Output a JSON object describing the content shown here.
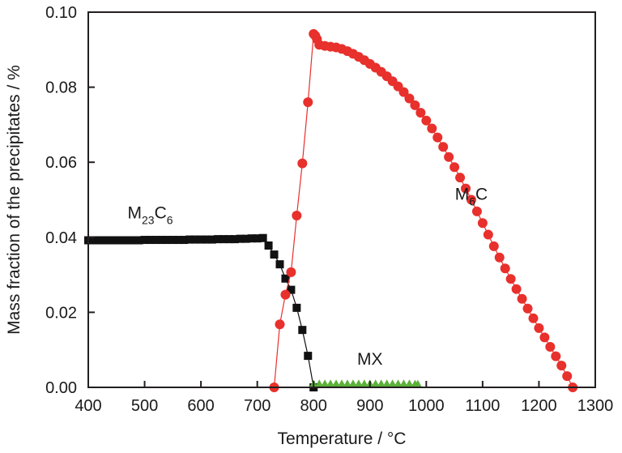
{
  "chart_data": {
    "type": "line",
    "title": "",
    "xlabel": "Temperature / °C",
    "ylabel": "Mass fraction of the precipitates / %",
    "xlim": [
      400,
      1300
    ],
    "ylim": [
      0,
      0.1
    ],
    "xticks": [
      400,
      500,
      600,
      700,
      800,
      900,
      1000,
      1100,
      1200,
      1300
    ],
    "xtick_labels": [
      "400",
      "500",
      "600",
      "700",
      "800",
      "900",
      "1000",
      "1100",
      "1200",
      "1300"
    ],
    "yticks": [
      0,
      0.02,
      0.04,
      0.06,
      0.08,
      0.1
    ],
    "ytick_labels": [
      "0.00",
      "0.02",
      "0.04",
      "0.06",
      "0.08",
      "0.10"
    ],
    "grid": false,
    "legend": "none",
    "annotations": [
      {
        "main": "M",
        "sub": "23",
        "main2": "C",
        "sub2": "6",
        "x": 510,
        "y": 0.045,
        "series": "M23C6"
      },
      {
        "main": "M",
        "sub": "6",
        "main2": "C",
        "sub2": "",
        "x": 1080,
        "y": 0.05,
        "series": "M6C"
      },
      {
        "main": "MX",
        "sub": "",
        "main2": "",
        "sub2": "",
        "x": 900,
        "y": 0.006,
        "series": "MX"
      }
    ],
    "series": [
      {
        "name": "M23C6",
        "marker": "square",
        "color": "#111111",
        "line_color": "#111111",
        "x": [
          400,
          410,
          420,
          430,
          440,
          450,
          460,
          470,
          480,
          490,
          500,
          510,
          520,
          530,
          540,
          550,
          560,
          570,
          580,
          590,
          600,
          610,
          620,
          630,
          640,
          650,
          660,
          670,
          680,
          690,
          700,
          710,
          720,
          730,
          740,
          750,
          760,
          770,
          780,
          790,
          800
        ],
        "y": [
          0.0392,
          0.0392,
          0.0392,
          0.0392,
          0.0392,
          0.0392,
          0.0392,
          0.0392,
          0.0392,
          0.0392,
          0.0393,
          0.0393,
          0.0393,
          0.0393,
          0.0393,
          0.0393,
          0.0393,
          0.0393,
          0.0394,
          0.0394,
          0.0394,
          0.0394,
          0.0394,
          0.0395,
          0.0395,
          0.0395,
          0.0395,
          0.0396,
          0.0396,
          0.0397,
          0.0397,
          0.0398,
          0.0378,
          0.0354,
          0.0328,
          0.029,
          0.026,
          0.0212,
          0.0153,
          0.0084,
          0.0
        ]
      },
      {
        "name": "M6C",
        "marker": "circle",
        "color": "#e8302c",
        "line_color": "#e8302c",
        "x": [
          730,
          740,
          750,
          760,
          770,
          780,
          790,
          800,
          803,
          806,
          810,
          820,
          830,
          840,
          850,
          860,
          870,
          880,
          890,
          900,
          910,
          920,
          930,
          940,
          950,
          960,
          970,
          980,
          990,
          1000,
          1010,
          1020,
          1030,
          1040,
          1050,
          1060,
          1070,
          1080,
          1090,
          1100,
          1110,
          1120,
          1130,
          1140,
          1150,
          1160,
          1170,
          1180,
          1190,
          1200,
          1210,
          1220,
          1230,
          1240,
          1250,
          1260
        ],
        "y": [
          0.0,
          0.0168,
          0.0247,
          0.0307,
          0.0458,
          0.0597,
          0.076,
          0.0942,
          0.0937,
          0.0928,
          0.0913,
          0.091,
          0.0908,
          0.0906,
          0.0902,
          0.0896,
          0.0889,
          0.0881,
          0.0872,
          0.0862,
          0.0852,
          0.0841,
          0.0829,
          0.0816,
          0.0802,
          0.0787,
          0.077,
          0.0752,
          0.0732,
          0.0711,
          0.069,
          0.0666,
          0.0641,
          0.0614,
          0.0587,
          0.0559,
          0.053,
          0.05,
          0.0469,
          0.0438,
          0.0407,
          0.0376,
          0.0346,
          0.0317,
          0.0289,
          0.0262,
          0.0236,
          0.021,
          0.0184,
          0.0158,
          0.0133,
          0.0108,
          0.0083,
          0.0058,
          0.003,
          0.0
        ]
      },
      {
        "name": "MX",
        "marker": "triangle",
        "color": "#5cb13a",
        "line_color": "#5cb13a",
        "x": [
          800,
          810,
          820,
          830,
          840,
          850,
          860,
          870,
          880,
          890,
          900,
          910,
          920,
          930,
          940,
          950,
          960,
          970,
          980,
          985
        ],
        "y": [
          0.0005,
          0.0006,
          0.0006,
          0.0006,
          0.0006,
          0.0006,
          0.0006,
          0.0006,
          0.0006,
          0.0006,
          0.0006,
          0.0006,
          0.0006,
          0.0006,
          0.0006,
          0.0006,
          0.0006,
          0.0006,
          0.0005,
          0.0005
        ]
      }
    ]
  }
}
